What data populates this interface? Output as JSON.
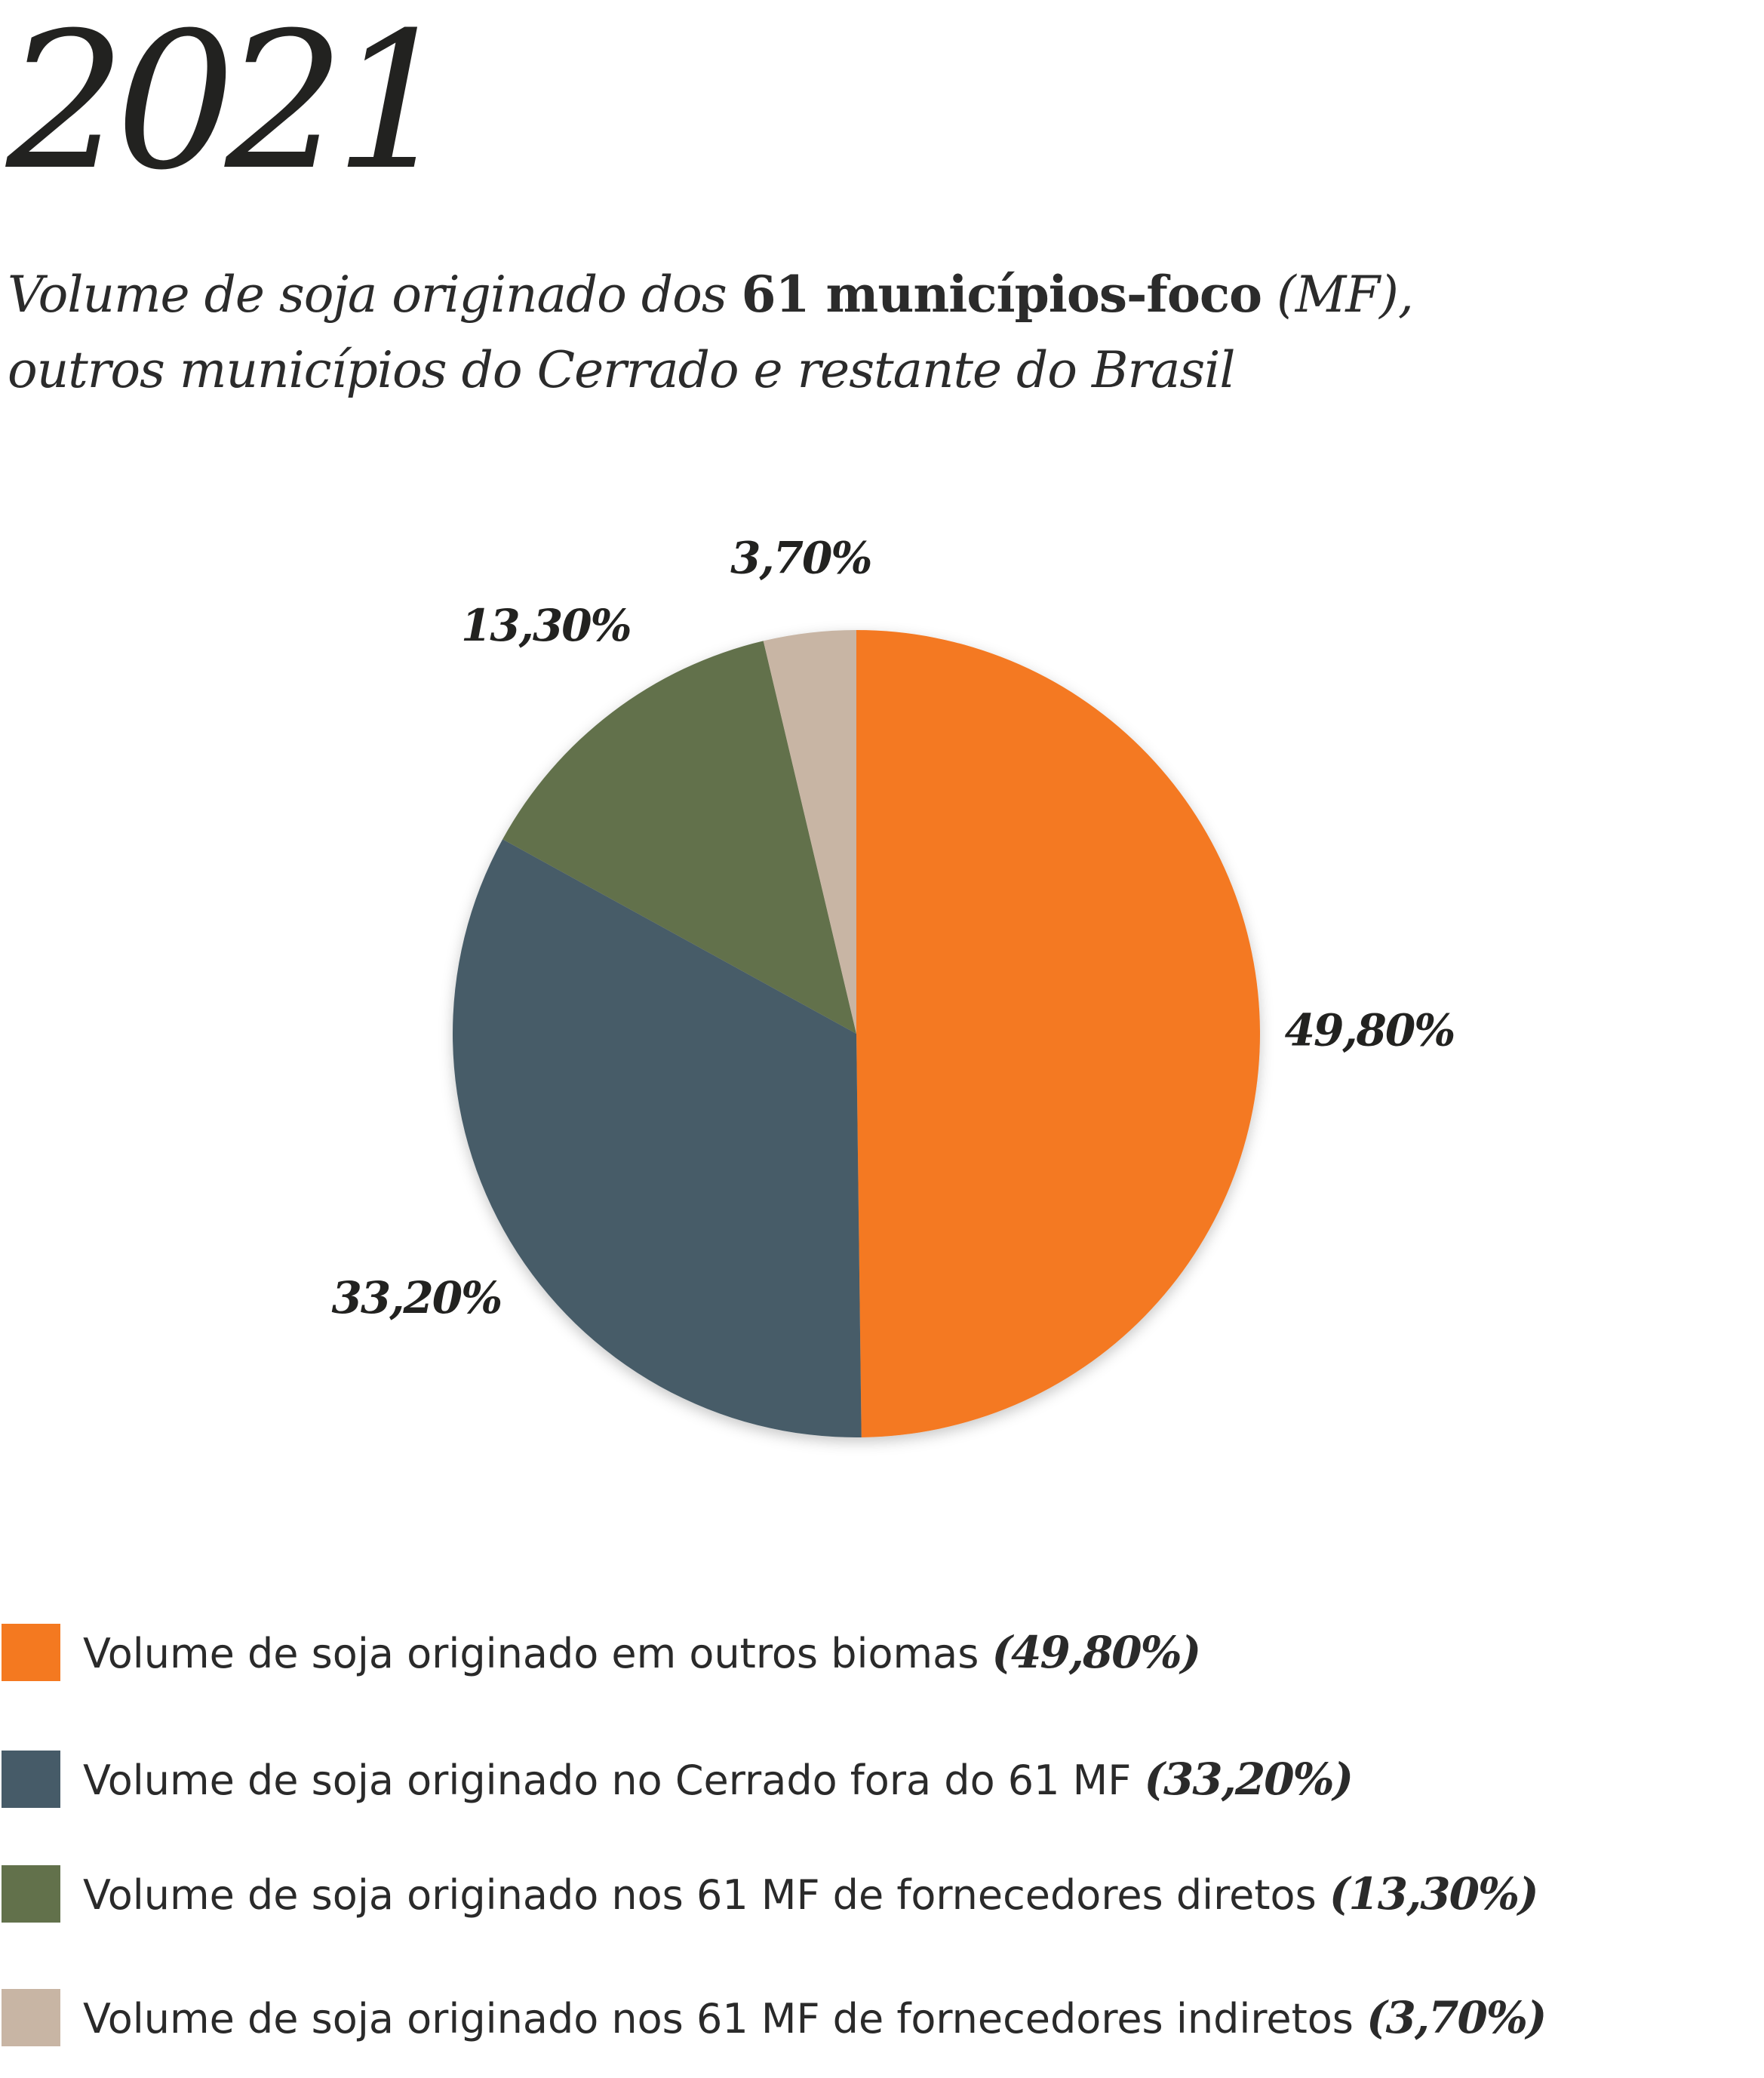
{
  "header": {
    "year": "2021",
    "subtitle_part1": "Volume de soja originado dos ",
    "subtitle_bold": "61 municípios-foco",
    "subtitle_part2": " (MF),",
    "subtitle_line2": "outros municípios do Cerrado e restante do Brasil"
  },
  "chart_data": {
    "type": "pie",
    "title": "Volume de soja originado dos 61 municípios-foco (MF), outros municípios do Cerrado e restante do Brasil",
    "categories": [
      "Volume de soja originado em outros biomas",
      "Volume de soja originado no Cerrado fora do 61 MF",
      "Volume de soja originado nos 61 MF de fornecedores diretos",
      "Volume de soja originado nos 61 MF de fornecedores indiretos"
    ],
    "values": [
      49.8,
      33.2,
      13.3,
      3.7
    ],
    "labels": [
      "49,80%",
      "33,20%",
      "13,30%",
      "3,70%"
    ],
    "colors": [
      "#f47920",
      "#465b68",
      "#62714b",
      "#c8b5a4"
    ],
    "legend_placement": "bottom"
  },
  "legend": {
    "items": [
      {
        "text": "Volume de soja originado em outros biomas ",
        "pct": "(49,80%)"
      },
      {
        "text": "Volume de soja originado no Cerrado fora do 61 MF ",
        "pct": "(33,20%)"
      },
      {
        "text": "Volume de soja originado nos 61 MF de fornecedores diretos ",
        "pct": "(13,30%)"
      },
      {
        "text": "Volume de soja originado nos 61 MF de fornecedores indiretos ",
        "pct": "(3,70%)"
      }
    ]
  }
}
